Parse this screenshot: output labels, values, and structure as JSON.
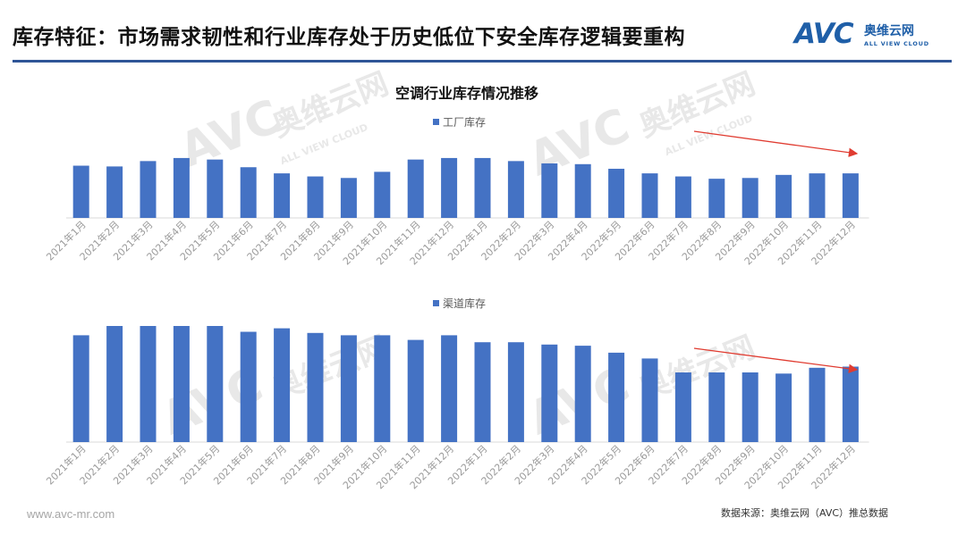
{
  "header": {
    "title": "库存特征：市场需求韧性和行业库存处于历史低位下安全库存逻辑要重构",
    "logo_text": "AVC",
    "logo_cn": "奥维云网",
    "logo_en": "ALL VIEW CLOUD"
  },
  "watermark": {
    "avc": "AVC",
    "cn": "奥维云网",
    "en": "ALL VIEW CLOUD"
  },
  "footer": {
    "website": "www.avc-mr.com",
    "source": "数据来源：奥维云网（AVC）推总数据"
  },
  "colors": {
    "bar": "#4472c4",
    "arrow": "#e03c31",
    "rule": "#2f5597",
    "brand": "#1f5fa8"
  },
  "chart_data": [
    {
      "type": "bar",
      "title": "空调行业库存情况推移",
      "series": [
        {
          "name": "工厂库存",
          "values": [
            68,
            67,
            74,
            78,
            76,
            66,
            58,
            54,
            52,
            60,
            76,
            78,
            78,
            74,
            71,
            70,
            64,
            58,
            54,
            51,
            52,
            56,
            58,
            58
          ]
        }
      ],
      "categories": [
        "2021年1月",
        "2021年2月",
        "2021年3月",
        "2021年4月",
        "2021年5月",
        "2021年6月",
        "2021年7月",
        "2021年8月",
        "2021年9月",
        "2021年10月",
        "2021年11月",
        "2021年12月",
        "2022年1月",
        "2022年2月",
        "2022年3月",
        "2022年4月",
        "2022年5月",
        "2022年6月",
        "2022年7月",
        "2022年8月",
        "2022年9月",
        "2022年10月",
        "2022年11月",
        "2022年12月"
      ],
      "ylim": [
        0,
        100
      ],
      "annotation": "downward trend arrow over 2022年7月–2022年12月"
    },
    {
      "type": "bar",
      "title": "",
      "series": [
        {
          "name": "渠道库存",
          "values": [
            92,
            100,
            100,
            100,
            100,
            95,
            98,
            94,
            92,
            92,
            88,
            92,
            86,
            86,
            84,
            83,
            77,
            72,
            60,
            60,
            60,
            59,
            64,
            65
          ]
        }
      ],
      "categories": [
        "2021年1月",
        "2021年2月",
        "2021年3月",
        "2021年4月",
        "2021年5月",
        "2021年6月",
        "2021年7月",
        "2021年8月",
        "2021年9月",
        "2021年10月",
        "2021年11月",
        "2021年12月",
        "2022年1月",
        "2022年2月",
        "2022年3月",
        "2022年4月",
        "2022年5月",
        "2022年6月",
        "2022年7月",
        "2022年8月",
        "2022年9月",
        "2022年10月",
        "2022年11月",
        "2022年12月"
      ],
      "ylim": [
        0,
        100
      ],
      "annotation": "downward trend arrow over 2022年7月–2022年12月"
    }
  ]
}
